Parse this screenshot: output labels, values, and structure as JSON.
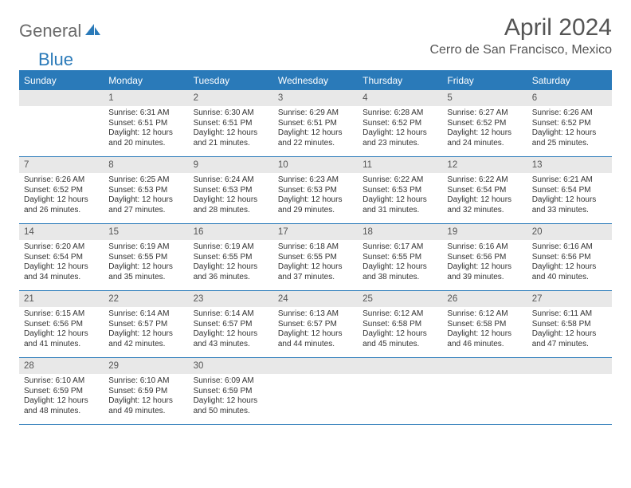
{
  "brand": {
    "part1": "General",
    "part2": "Blue"
  },
  "title": "April 2024",
  "location": "Cerro de San Francisco, Mexico",
  "colors": {
    "accent": "#2a7ab9",
    "header_bg": "#2a7ab9",
    "header_text": "#ffffff",
    "daynum_bg": "#e8e8e8",
    "text": "#333333",
    "title_text": "#555555"
  },
  "dayHeaders": [
    "Sunday",
    "Monday",
    "Tuesday",
    "Wednesday",
    "Thursday",
    "Friday",
    "Saturday"
  ],
  "leadingBlanks": 1,
  "days": [
    {
      "n": 1,
      "sunrise": "6:31 AM",
      "sunset": "6:51 PM",
      "dl": "12 hours and 20 minutes."
    },
    {
      "n": 2,
      "sunrise": "6:30 AM",
      "sunset": "6:51 PM",
      "dl": "12 hours and 21 minutes."
    },
    {
      "n": 3,
      "sunrise": "6:29 AM",
      "sunset": "6:51 PM",
      "dl": "12 hours and 22 minutes."
    },
    {
      "n": 4,
      "sunrise": "6:28 AM",
      "sunset": "6:52 PM",
      "dl": "12 hours and 23 minutes."
    },
    {
      "n": 5,
      "sunrise": "6:27 AM",
      "sunset": "6:52 PM",
      "dl": "12 hours and 24 minutes."
    },
    {
      "n": 6,
      "sunrise": "6:26 AM",
      "sunset": "6:52 PM",
      "dl": "12 hours and 25 minutes."
    },
    {
      "n": 7,
      "sunrise": "6:26 AM",
      "sunset": "6:52 PM",
      "dl": "12 hours and 26 minutes."
    },
    {
      "n": 8,
      "sunrise": "6:25 AM",
      "sunset": "6:53 PM",
      "dl": "12 hours and 27 minutes."
    },
    {
      "n": 9,
      "sunrise": "6:24 AM",
      "sunset": "6:53 PM",
      "dl": "12 hours and 28 minutes."
    },
    {
      "n": 10,
      "sunrise": "6:23 AM",
      "sunset": "6:53 PM",
      "dl": "12 hours and 29 minutes."
    },
    {
      "n": 11,
      "sunrise": "6:22 AM",
      "sunset": "6:53 PM",
      "dl": "12 hours and 31 minutes."
    },
    {
      "n": 12,
      "sunrise": "6:22 AM",
      "sunset": "6:54 PM",
      "dl": "12 hours and 32 minutes."
    },
    {
      "n": 13,
      "sunrise": "6:21 AM",
      "sunset": "6:54 PM",
      "dl": "12 hours and 33 minutes."
    },
    {
      "n": 14,
      "sunrise": "6:20 AM",
      "sunset": "6:54 PM",
      "dl": "12 hours and 34 minutes."
    },
    {
      "n": 15,
      "sunrise": "6:19 AM",
      "sunset": "6:55 PM",
      "dl": "12 hours and 35 minutes."
    },
    {
      "n": 16,
      "sunrise": "6:19 AM",
      "sunset": "6:55 PM",
      "dl": "12 hours and 36 minutes."
    },
    {
      "n": 17,
      "sunrise": "6:18 AM",
      "sunset": "6:55 PM",
      "dl": "12 hours and 37 minutes."
    },
    {
      "n": 18,
      "sunrise": "6:17 AM",
      "sunset": "6:55 PM",
      "dl": "12 hours and 38 minutes."
    },
    {
      "n": 19,
      "sunrise": "6:16 AM",
      "sunset": "6:56 PM",
      "dl": "12 hours and 39 minutes."
    },
    {
      "n": 20,
      "sunrise": "6:16 AM",
      "sunset": "6:56 PM",
      "dl": "12 hours and 40 minutes."
    },
    {
      "n": 21,
      "sunrise": "6:15 AM",
      "sunset": "6:56 PM",
      "dl": "12 hours and 41 minutes."
    },
    {
      "n": 22,
      "sunrise": "6:14 AM",
      "sunset": "6:57 PM",
      "dl": "12 hours and 42 minutes."
    },
    {
      "n": 23,
      "sunrise": "6:14 AM",
      "sunset": "6:57 PM",
      "dl": "12 hours and 43 minutes."
    },
    {
      "n": 24,
      "sunrise": "6:13 AM",
      "sunset": "6:57 PM",
      "dl": "12 hours and 44 minutes."
    },
    {
      "n": 25,
      "sunrise": "6:12 AM",
      "sunset": "6:58 PM",
      "dl": "12 hours and 45 minutes."
    },
    {
      "n": 26,
      "sunrise": "6:12 AM",
      "sunset": "6:58 PM",
      "dl": "12 hours and 46 minutes."
    },
    {
      "n": 27,
      "sunrise": "6:11 AM",
      "sunset": "6:58 PM",
      "dl": "12 hours and 47 minutes."
    },
    {
      "n": 28,
      "sunrise": "6:10 AM",
      "sunset": "6:59 PM",
      "dl": "12 hours and 48 minutes."
    },
    {
      "n": 29,
      "sunrise": "6:10 AM",
      "sunset": "6:59 PM",
      "dl": "12 hours and 49 minutes."
    },
    {
      "n": 30,
      "sunrise": "6:09 AM",
      "sunset": "6:59 PM",
      "dl": "12 hours and 50 minutes."
    }
  ],
  "trailingBlanks": 4,
  "labels": {
    "sunrise": "Sunrise:",
    "sunset": "Sunset:",
    "daylight": "Daylight:"
  }
}
